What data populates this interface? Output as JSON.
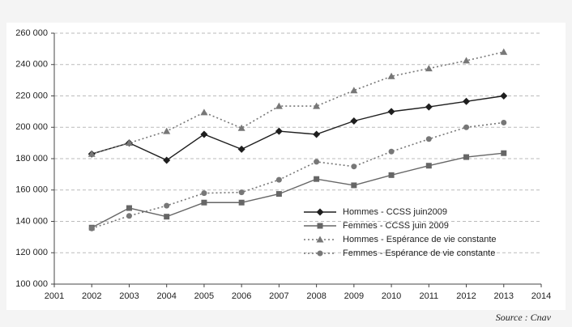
{
  "chart_data": {
    "type": "line",
    "x": [
      2002,
      2003,
      2004,
      2005,
      2006,
      2007,
      2008,
      2009,
      2010,
      2011,
      2012,
      2013
    ],
    "xlim": [
      2001,
      2014
    ],
    "xticks": [
      2001,
      2002,
      2003,
      2004,
      2005,
      2006,
      2007,
      2008,
      2009,
      2010,
      2011,
      2012,
      2013,
      2014
    ],
    "ylim": [
      100000,
      260000
    ],
    "yticks": [
      {
        "value": 100000,
        "label": "100 000"
      },
      {
        "value": 120000,
        "label": "120 000"
      },
      {
        "value": 140000,
        "label": "140 000"
      },
      {
        "value": 160000,
        "label": "160 000"
      },
      {
        "value": 180000,
        "label": "180 000"
      },
      {
        "value": 200000,
        "label": "200 000"
      },
      {
        "value": 220000,
        "label": "220 000"
      },
      {
        "value": 240000,
        "label": "240 000"
      },
      {
        "value": 260000,
        "label": "260 000"
      }
    ],
    "grid": true,
    "legend": "lower right",
    "series": [
      {
        "name": "Hommes - CCSS juin2009",
        "color": "#1e1e1e",
        "marker": "diamond",
        "line_style": "solid",
        "values": [
          183000,
          190000,
          179000,
          195500,
          186000,
          197500,
          195500,
          204000,
          210000,
          213000,
          216500,
          220000
        ]
      },
      {
        "name": "Femmes - CCSS juin 2009",
        "color": "#666666",
        "marker": "square",
        "line_style": "solid",
        "values": [
          136000,
          148500,
          143000,
          152000,
          152000,
          157500,
          167000,
          163000,
          169500,
          175500,
          181000,
          183500
        ]
      },
      {
        "name": "Hommes - Espérance de vie constante",
        "color": "#777777",
        "marker": "triangle",
        "line_style": "dotted",
        "values": [
          183000,
          190000,
          197500,
          209500,
          199500,
          213500,
          213500,
          223500,
          232500,
          237500,
          242500,
          248000
        ]
      },
      {
        "name": "Femmes - Espérance de vie constante",
        "color": "#777777",
        "marker": "circle",
        "line_style": "dotted",
        "values": [
          135500,
          143500,
          150000,
          158000,
          158500,
          166500,
          178000,
          175000,
          184500,
          192500,
          200000,
          203000
        ]
      }
    ],
    "source": "Source : Cnav"
  }
}
